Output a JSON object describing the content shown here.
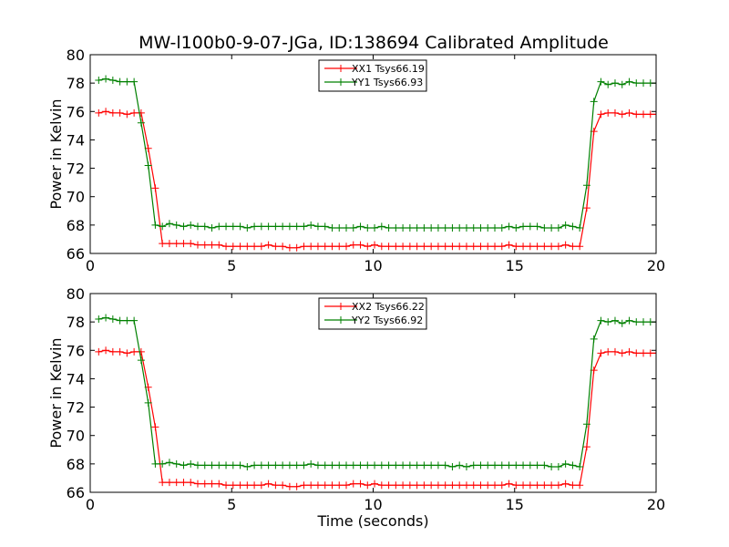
{
  "title": "MW-l100b0-9-07-JGa, ID:138694 Calibrated Amplitude",
  "chart_data": [
    {
      "type": "line",
      "title": "MW-l100b0-9-07-JGa, ID:138694 Calibrated Amplitude",
      "xlabel": "",
      "ylabel": "Power in Kelvin",
      "xlim": [
        0,
        20
      ],
      "ylim": [
        66,
        80
      ],
      "xticks": [
        0,
        5,
        10,
        15,
        20
      ],
      "yticks": [
        66,
        68,
        70,
        72,
        74,
        76,
        78,
        80
      ],
      "legend_position": "top-center",
      "grid": false,
      "x": [
        0.3,
        0.55,
        0.8,
        1.05,
        1.3,
        1.55,
        1.8,
        2.05,
        2.3,
        2.55,
        2.8,
        3.05,
        3.3,
        3.55,
        3.8,
        4.05,
        4.3,
        4.55,
        4.8,
        5.05,
        5.3,
        5.55,
        5.8,
        6.05,
        6.3,
        6.55,
        6.8,
        7.05,
        7.3,
        7.55,
        7.8,
        8.05,
        8.3,
        8.55,
        8.8,
        9.05,
        9.3,
        9.55,
        9.8,
        10.05,
        10.3,
        10.55,
        10.8,
        11.05,
        11.3,
        11.55,
        11.8,
        12.05,
        12.3,
        12.55,
        12.8,
        13.05,
        13.3,
        13.55,
        13.8,
        14.05,
        14.3,
        14.55,
        14.8,
        15.05,
        15.3,
        15.55,
        15.8,
        16.05,
        16.3,
        16.55,
        16.8,
        17.05,
        17.3,
        17.55,
        17.8,
        18.05,
        18.3,
        18.55,
        18.8,
        19.05,
        19.3,
        19.55,
        19.8,
        20.05
      ],
      "series": [
        {
          "name": "XX1 Tsys66.19",
          "color": "#ff0000",
          "values": [
            75.9,
            76.0,
            75.9,
            75.9,
            75.8,
            75.9,
            75.9,
            73.4,
            70.6,
            66.7,
            66.7,
            66.7,
            66.7,
            66.7,
            66.6,
            66.6,
            66.6,
            66.6,
            66.5,
            66.5,
            66.5,
            66.5,
            66.5,
            66.5,
            66.6,
            66.5,
            66.5,
            66.4,
            66.4,
            66.5,
            66.5,
            66.5,
            66.5,
            66.5,
            66.5,
            66.5,
            66.6,
            66.6,
            66.5,
            66.6,
            66.5,
            66.5,
            66.5,
            66.5,
            66.5,
            66.5,
            66.5,
            66.5,
            66.5,
            66.5,
            66.5,
            66.5,
            66.5,
            66.5,
            66.5,
            66.5,
            66.5,
            66.5,
            66.6,
            66.5,
            66.5,
            66.5,
            66.5,
            66.5,
            66.5,
            66.5,
            66.6,
            66.5,
            66.5,
            69.2,
            74.6,
            75.8,
            75.9,
            75.9,
            75.8,
            75.9,
            75.8,
            75.8,
            75.8,
            75.8
          ]
        },
        {
          "name": "YY1 Tsys66.93",
          "color": "#008000",
          "values": [
            78.2,
            78.3,
            78.2,
            78.1,
            78.1,
            78.1,
            75.2,
            72.2,
            68.0,
            67.9,
            68.1,
            68.0,
            67.9,
            68.0,
            67.9,
            67.9,
            67.8,
            67.9,
            67.9,
            67.9,
            67.9,
            67.8,
            67.9,
            67.9,
            67.9,
            67.9,
            67.9,
            67.9,
            67.9,
            67.9,
            68.0,
            67.9,
            67.9,
            67.8,
            67.8,
            67.8,
            67.8,
            67.9,
            67.8,
            67.8,
            67.9,
            67.8,
            67.8,
            67.8,
            67.8,
            67.8,
            67.8,
            67.8,
            67.8,
            67.8,
            67.8,
            67.8,
            67.8,
            67.8,
            67.8,
            67.8,
            67.8,
            67.8,
            67.9,
            67.8,
            67.9,
            67.9,
            67.9,
            67.8,
            67.8,
            67.8,
            68.0,
            67.9,
            67.8,
            70.8,
            76.7,
            78.1,
            77.9,
            78.0,
            77.9,
            78.1,
            78.0,
            78.0,
            78.0,
            78.0
          ]
        }
      ]
    },
    {
      "type": "line",
      "title": "",
      "xlabel": "Time (seconds)",
      "ylabel": "Power in Kelvin",
      "xlim": [
        0,
        20
      ],
      "ylim": [
        66,
        80
      ],
      "xticks": [
        0,
        5,
        10,
        15,
        20
      ],
      "yticks": [
        66,
        68,
        70,
        72,
        74,
        76,
        78,
        80
      ],
      "legend_position": "top-center",
      "grid": false,
      "x": [
        0.3,
        0.55,
        0.8,
        1.05,
        1.3,
        1.55,
        1.8,
        2.05,
        2.3,
        2.55,
        2.8,
        3.05,
        3.3,
        3.55,
        3.8,
        4.05,
        4.3,
        4.55,
        4.8,
        5.05,
        5.3,
        5.55,
        5.8,
        6.05,
        6.3,
        6.55,
        6.8,
        7.05,
        7.3,
        7.55,
        7.8,
        8.05,
        8.3,
        8.55,
        8.8,
        9.05,
        9.3,
        9.55,
        9.8,
        10.05,
        10.3,
        10.55,
        10.8,
        11.05,
        11.3,
        11.55,
        11.8,
        12.05,
        12.3,
        12.55,
        12.8,
        13.05,
        13.3,
        13.55,
        13.8,
        14.05,
        14.3,
        14.55,
        14.8,
        15.05,
        15.3,
        15.55,
        15.8,
        16.05,
        16.3,
        16.55,
        16.8,
        17.05,
        17.3,
        17.55,
        17.8,
        18.05,
        18.3,
        18.55,
        18.8,
        19.05,
        19.3,
        19.55,
        19.8,
        20.05
      ],
      "series": [
        {
          "name": "XX2 Tsys66.22",
          "color": "#ff0000",
          "values": [
            75.9,
            76.0,
            75.9,
            75.9,
            75.8,
            75.9,
            75.9,
            73.4,
            70.6,
            66.7,
            66.7,
            66.7,
            66.7,
            66.7,
            66.6,
            66.6,
            66.6,
            66.6,
            66.5,
            66.5,
            66.5,
            66.5,
            66.5,
            66.5,
            66.6,
            66.5,
            66.5,
            66.4,
            66.4,
            66.5,
            66.5,
            66.5,
            66.5,
            66.5,
            66.5,
            66.5,
            66.6,
            66.6,
            66.5,
            66.6,
            66.5,
            66.5,
            66.5,
            66.5,
            66.5,
            66.5,
            66.5,
            66.5,
            66.5,
            66.5,
            66.5,
            66.5,
            66.5,
            66.5,
            66.5,
            66.5,
            66.5,
            66.5,
            66.6,
            66.5,
            66.5,
            66.5,
            66.5,
            66.5,
            66.5,
            66.5,
            66.6,
            66.5,
            66.5,
            69.2,
            74.6,
            75.8,
            75.9,
            75.9,
            75.8,
            75.9,
            75.8,
            75.8,
            75.8,
            75.8
          ]
        },
        {
          "name": "YY2 Tsys66.92",
          "color": "#008000",
          "values": [
            78.2,
            78.3,
            78.2,
            78.1,
            78.1,
            78.1,
            75.3,
            72.3,
            68.0,
            68.0,
            68.1,
            68.0,
            67.9,
            68.0,
            67.9,
            67.9,
            67.9,
            67.9,
            67.9,
            67.9,
            67.9,
            67.8,
            67.9,
            67.9,
            67.9,
            67.9,
            67.9,
            67.9,
            67.9,
            67.9,
            68.0,
            67.9,
            67.9,
            67.9,
            67.9,
            67.9,
            67.9,
            67.9,
            67.9,
            67.9,
            67.9,
            67.9,
            67.9,
            67.9,
            67.9,
            67.9,
            67.9,
            67.9,
            67.9,
            67.9,
            67.8,
            67.9,
            67.8,
            67.9,
            67.9,
            67.9,
            67.9,
            67.9,
            67.9,
            67.9,
            67.9,
            67.9,
            67.9,
            67.9,
            67.8,
            67.8,
            68.0,
            67.9,
            67.8,
            70.8,
            76.8,
            78.1,
            78.0,
            78.1,
            77.9,
            78.1,
            78.0,
            78.0,
            78.0,
            78.0
          ]
        }
      ]
    }
  ]
}
